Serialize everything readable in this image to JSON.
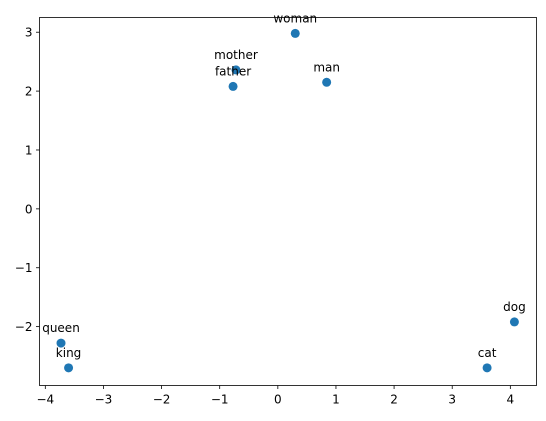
{
  "chart_data": {
    "type": "scatter",
    "title": "",
    "xlabel": "",
    "ylabel": "",
    "xlim": [
      -4.1,
      4.45
    ],
    "ylim": [
      -3.0,
      3.25
    ],
    "xticks": [
      -4,
      -3,
      -2,
      -1,
      0,
      1,
      2,
      3,
      4
    ],
    "yticks": [
      -2,
      -1,
      0,
      1,
      2,
      3
    ],
    "xtick_labels": [
      "−4",
      "−3",
      "−2",
      "−1",
      "0",
      "1",
      "2",
      "3",
      "4"
    ],
    "ytick_labels": [
      "−2",
      "−1",
      "0",
      "1",
      "2",
      "3"
    ],
    "grid": false,
    "marker_color": "#1f77b4",
    "points": [
      {
        "label": "woman",
        "x": 0.3,
        "y": 2.98
      },
      {
        "label": "mother",
        "x": -0.72,
        "y": 2.36
      },
      {
        "label": "father",
        "x": -0.77,
        "y": 2.08
      },
      {
        "label": "man",
        "x": 0.84,
        "y": 2.15
      },
      {
        "label": "dog",
        "x": 4.07,
        "y": -1.92
      },
      {
        "label": "cat",
        "x": 3.6,
        "y": -2.7
      },
      {
        "label": "queen",
        "x": -3.73,
        "y": -2.28
      },
      {
        "label": "king",
        "x": -3.6,
        "y": -2.7
      }
    ]
  }
}
